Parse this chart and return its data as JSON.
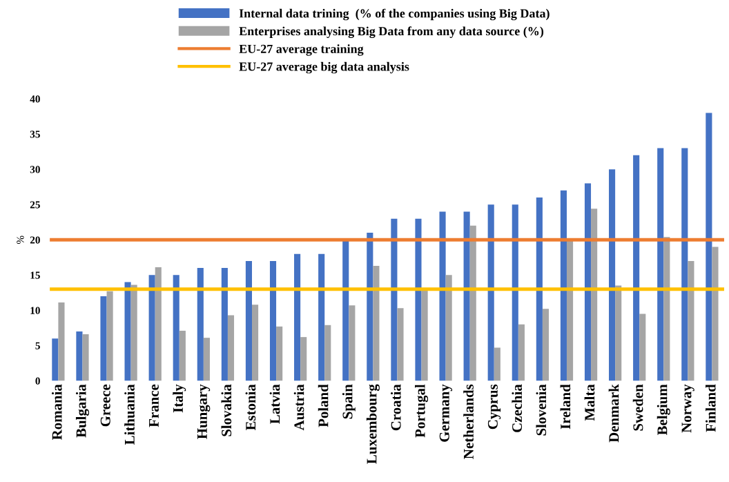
{
  "chart_data": {
    "type": "bar",
    "ylabel": "%",
    "categories": [
      "Romania",
      "Bulgaria",
      "Greece",
      "Lithuania",
      "France",
      "Italy",
      "Hungary",
      "Slovakia",
      "Estonia",
      "Latvia",
      "Austria",
      "Poland",
      "Spain",
      "Luxembourg",
      "Croatia",
      "Portugal",
      "Germany",
      "Netherlands",
      "Cyprus",
      "Czechia",
      "Slovenia",
      "Ireland",
      "Malta",
      "Denmark",
      "Sweden",
      "Belgium",
      "Norway",
      "Finland"
    ],
    "series": [
      {
        "name": "Internal data trining  (% of the companies using Big Data)",
        "color": "#4472c4",
        "values": [
          6,
          7,
          12,
          14,
          15,
          15,
          16,
          16,
          17,
          17,
          18,
          18,
          20,
          21,
          23,
          23,
          24,
          24,
          25,
          25,
          26,
          27,
          28,
          30,
          32,
          33,
          33,
          38
        ]
      },
      {
        "name": "Enterprises analysing Big Data from any data source (%)",
        "color": "#a5a5a5",
        "values": [
          11.1,
          6.6,
          12.7,
          13.6,
          16.1,
          7.1,
          6.1,
          9.3,
          10.8,
          7.7,
          6.2,
          7.9,
          10.7,
          16.3,
          10.3,
          13,
          15,
          22,
          4.7,
          8,
          10.2,
          20,
          24.4,
          13.5,
          9.5,
          20.4,
          17,
          19
        ]
      }
    ],
    "ref_lines": [
      {
        "axis": "y",
        "value": 20,
        "label": "EU-27 average training",
        "color": "#ed7d31"
      },
      {
        "axis": "y",
        "value": 13,
        "label": "EU-27 average big data analysis",
        "color": "#ffc000"
      }
    ],
    "ylim": [
      0,
      40
    ],
    "yticks": [
      0,
      5,
      10,
      15,
      20,
      25,
      30,
      35,
      40
    ],
    "grid": false,
    "legend": "top"
  }
}
